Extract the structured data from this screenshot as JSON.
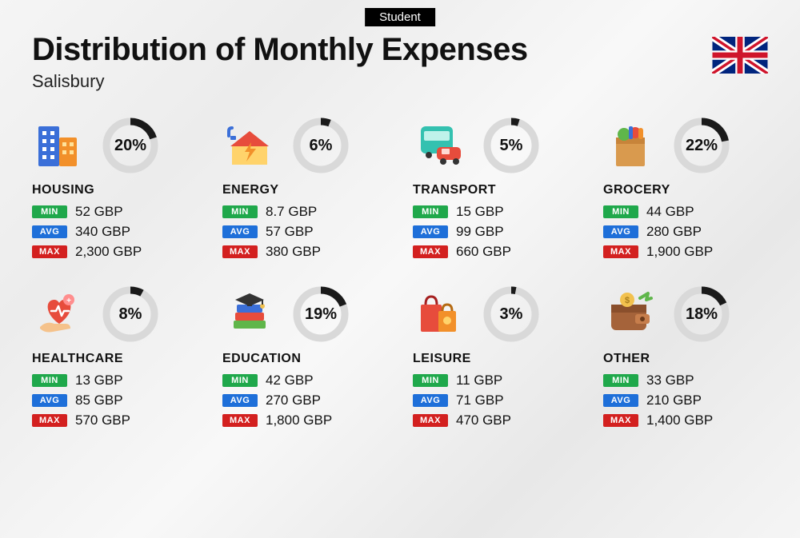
{
  "tag": "Student",
  "title": "Distribution of Monthly Expenses",
  "subtitle": "Salisbury",
  "currency": "GBP",
  "badges": {
    "min": "MIN",
    "avg": "AVG",
    "max": "MAX"
  },
  "ring": {
    "track_color": "#d9d9d9",
    "progress_color": "#1a1a1a",
    "stroke_width": 9,
    "radius": 30
  },
  "badge_colors": {
    "min": "#1fa84b",
    "avg": "#1e6fd9",
    "max": "#d3201f"
  },
  "flag": "uk",
  "categories": [
    {
      "key": "housing",
      "name": "HOUSING",
      "percent": 20,
      "min": "52 GBP",
      "avg": "340 GBP",
      "max": "2,300 GBP",
      "icon": "buildings"
    },
    {
      "key": "energy",
      "name": "ENERGY",
      "percent": 6,
      "min": "8.7 GBP",
      "avg": "57 GBP",
      "max": "380 GBP",
      "icon": "energy-house"
    },
    {
      "key": "transport",
      "name": "TRANSPORT",
      "percent": 5,
      "min": "15 GBP",
      "avg": "99 GBP",
      "max": "660 GBP",
      "icon": "bus-car"
    },
    {
      "key": "grocery",
      "name": "GROCERY",
      "percent": 22,
      "min": "44 GBP",
      "avg": "280 GBP",
      "max": "1,900 GBP",
      "icon": "grocery-bag"
    },
    {
      "key": "healthcare",
      "name": "HEALTHCARE",
      "percent": 8,
      "min": "13 GBP",
      "avg": "85 GBP",
      "max": "570 GBP",
      "icon": "heart-hand"
    },
    {
      "key": "education",
      "name": "EDUCATION",
      "percent": 19,
      "min": "42 GBP",
      "avg": "270 GBP",
      "max": "1,800 GBP",
      "icon": "grad-books"
    },
    {
      "key": "leisure",
      "name": "LEISURE",
      "percent": 3,
      "min": "11 GBP",
      "avg": "71 GBP",
      "max": "470 GBP",
      "icon": "shopping-bags"
    },
    {
      "key": "other",
      "name": "OTHER",
      "percent": 18,
      "min": "33 GBP",
      "avg": "210 GBP",
      "max": "1,400 GBP",
      "icon": "wallet"
    }
  ]
}
